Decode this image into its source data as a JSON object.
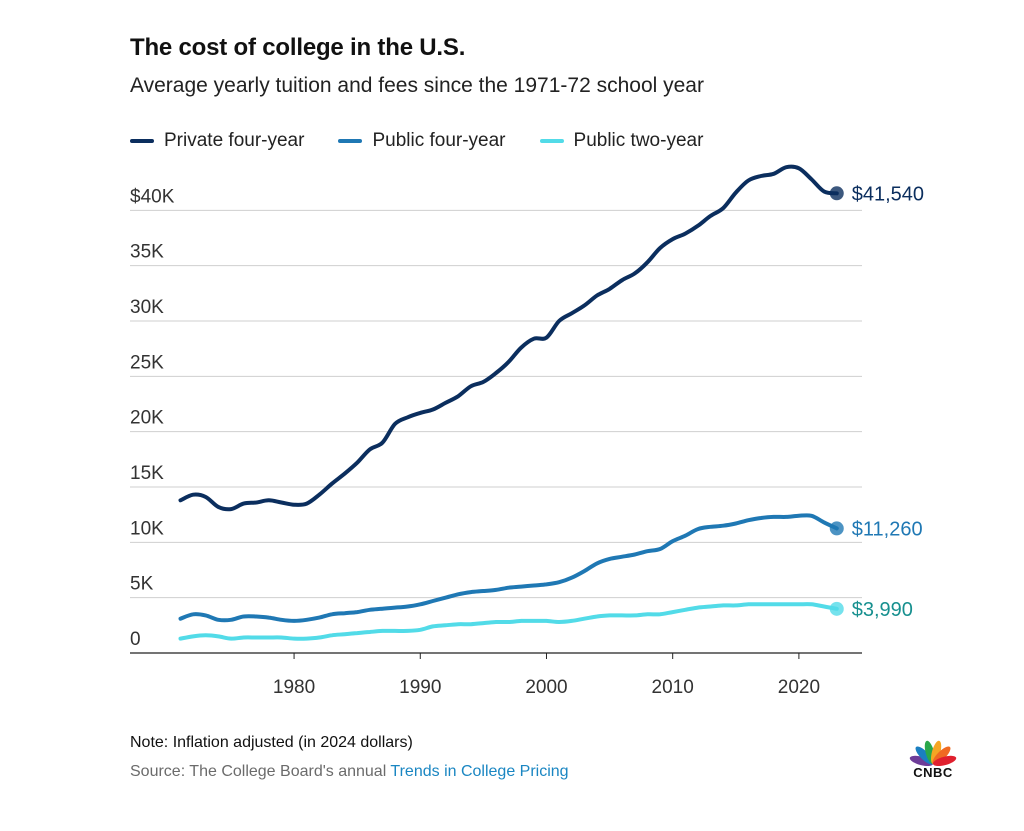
{
  "header": {
    "title": "The cost of college in the U.S.",
    "subtitle": "Average yearly tuition and fees since the 1971-72 school year"
  },
  "footer": {
    "note": "Note: Inflation adjusted (in 2024 dollars)",
    "source_prefix": "Source: The College Board's annual ",
    "source_link": "Trends in College Pricing"
  },
  "logo": {
    "icon": "peacock-icon",
    "text": "CNBC"
  },
  "chart_data": {
    "type": "line",
    "ylim": [
      0,
      45000
    ],
    "xlim": [
      1967,
      2025
    ],
    "y_ticks": [
      {
        "value": 0,
        "label": "0"
      },
      {
        "value": 5000,
        "label": "5K"
      },
      {
        "value": 10000,
        "label": "10K"
      },
      {
        "value": 15000,
        "label": "15K"
      },
      {
        "value": 20000,
        "label": "20K"
      },
      {
        "value": 25000,
        "label": "25K"
      },
      {
        "value": 30000,
        "label": "30K"
      },
      {
        "value": 35000,
        "label": "35K"
      },
      {
        "value": 40000,
        "label": "$40K"
      }
    ],
    "x_ticks": [
      {
        "value": 1980,
        "label": "1980"
      },
      {
        "value": 1990,
        "label": "1990"
      },
      {
        "value": 2000,
        "label": "2000"
      },
      {
        "value": 2010,
        "label": "2010"
      },
      {
        "value": 2020,
        "label": "2020"
      }
    ],
    "grid": true,
    "legend_position": "top-left",
    "series": [
      {
        "name": "Private four-year",
        "color": "#0b2e5e",
        "end_label": "$41,540",
        "label_color": "#0b2e5e",
        "x": [
          1971,
          1972,
          1973,
          1974,
          1975,
          1976,
          1977,
          1978,
          1979,
          1980,
          1981,
          1982,
          1983,
          1984,
          1985,
          1986,
          1987,
          1988,
          1989,
          1990,
          1991,
          1992,
          1993,
          1994,
          1995,
          1996,
          1997,
          1998,
          1999,
          2000,
          2001,
          2002,
          2003,
          2004,
          2005,
          2006,
          2007,
          2008,
          2009,
          2010,
          2011,
          2012,
          2013,
          2014,
          2015,
          2016,
          2017,
          2018,
          2019,
          2020,
          2021,
          2022,
          2023
        ],
        "y": [
          13800,
          14300,
          14100,
          13200,
          13000,
          13500,
          13600,
          13800,
          13600,
          13400,
          13500,
          14300,
          15300,
          16200,
          17200,
          18400,
          19000,
          20700,
          21300,
          21700,
          22000,
          22600,
          23200,
          24100,
          24500,
          25300,
          26300,
          27600,
          28400,
          28500,
          30000,
          30700,
          31400,
          32300,
          32900,
          33700,
          34300,
          35300,
          36600,
          37400,
          37900,
          38600,
          39500,
          40200,
          41600,
          42700,
          43100,
          43300,
          43900,
          43800,
          42800,
          41700,
          41540
        ]
      },
      {
        "name": "Public four-year",
        "color": "#1f78b4",
        "end_label": "$11,260",
        "label_color": "#1f78b4",
        "x": [
          1971,
          1972,
          1973,
          1974,
          1975,
          1976,
          1977,
          1978,
          1979,
          1980,
          1981,
          1982,
          1983,
          1984,
          1985,
          1986,
          1987,
          1988,
          1989,
          1990,
          1991,
          1992,
          1993,
          1994,
          1995,
          1996,
          1997,
          1998,
          1999,
          2000,
          2001,
          2002,
          2003,
          2004,
          2005,
          2006,
          2007,
          2008,
          2009,
          2010,
          2011,
          2012,
          2013,
          2014,
          2015,
          2016,
          2017,
          2018,
          2019,
          2020,
          2021,
          2022,
          2023
        ],
        "y": [
          3100,
          3500,
          3400,
          3000,
          3000,
          3300,
          3300,
          3200,
          3000,
          2900,
          3000,
          3200,
          3500,
          3600,
          3700,
          3900,
          4000,
          4100,
          4200,
          4400,
          4700,
          5000,
          5300,
          5500,
          5600,
          5700,
          5900,
          6000,
          6100,
          6200,
          6400,
          6800,
          7400,
          8100,
          8500,
          8700,
          8900,
          9200,
          9400,
          10100,
          10600,
          11200,
          11400,
          11500,
          11700,
          12000,
          12200,
          12300,
          12300,
          12400,
          12400,
          11800,
          11260
        ]
      },
      {
        "name": "Public two-year",
        "color": "#52dbe8",
        "end_label": "$3,990",
        "label_color": "#17908f",
        "x": [
          1971,
          1972,
          1973,
          1974,
          1975,
          1976,
          1977,
          1978,
          1979,
          1980,
          1981,
          1982,
          1983,
          1984,
          1985,
          1986,
          1987,
          1988,
          1989,
          1990,
          1991,
          1992,
          1993,
          1994,
          1995,
          1996,
          1997,
          1998,
          1999,
          2000,
          2001,
          2002,
          2003,
          2004,
          2005,
          2006,
          2007,
          2008,
          2009,
          2010,
          2011,
          2012,
          2013,
          2014,
          2015,
          2016,
          2017,
          2018,
          2019,
          2020,
          2021,
          2022,
          2023
        ],
        "y": [
          1300,
          1500,
          1600,
          1500,
          1300,
          1400,
          1400,
          1400,
          1400,
          1300,
          1300,
          1400,
          1600,
          1700,
          1800,
          1900,
          2000,
          2000,
          2000,
          2100,
          2400,
          2500,
          2600,
          2600,
          2700,
          2800,
          2800,
          2900,
          2900,
          2900,
          2800,
          2900,
          3100,
          3300,
          3400,
          3400,
          3400,
          3500,
          3500,
          3700,
          3900,
          4100,
          4200,
          4300,
          4300,
          4400,
          4400,
          4400,
          4400,
          4400,
          4400,
          4200,
          3990
        ]
      }
    ]
  }
}
